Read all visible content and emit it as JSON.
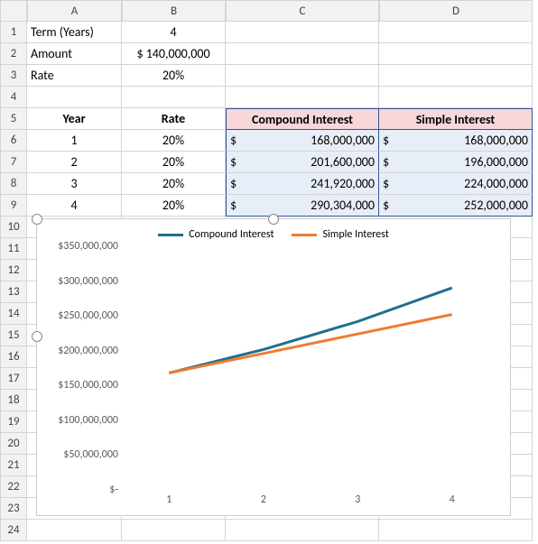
{
  "columns": [
    "A",
    "B",
    "C",
    "D"
  ],
  "param_rows": [
    {
      "label": "Term (Years)",
      "value": "4"
    },
    {
      "label": "Amount",
      "value": "$ 140,000,000"
    },
    {
      "label": "Rate",
      "value": "20%"
    }
  ],
  "table": {
    "headers": {
      "year": "Year",
      "rate": "Rate",
      "ci": "Compound Interest",
      "si": "Simple Interest"
    },
    "rows": [
      {
        "year": "1",
        "rate": "20%",
        "ci": "168,000,000",
        "si": "168,000,000"
      },
      {
        "year": "2",
        "rate": "20%",
        "ci": "201,600,000",
        "si": "196,000,000"
      },
      {
        "year": "3",
        "rate": "20%",
        "ci": "241,920,000",
        "si": "224,000,000"
      },
      {
        "year": "4",
        "rate": "20%",
        "ci": "290,304,000",
        "si": "252,000,000"
      }
    ],
    "header_bg": "#f8d7da",
    "selection_bg": "#e8eef7",
    "selection_border": "#2f5597"
  },
  "chart": {
    "type": "line",
    "series": [
      {
        "name": "Compound Interest",
        "color": "#1f6f8b",
        "values": [
          168000000,
          201600000,
          241920000,
          290304000
        ]
      },
      {
        "name": "Simple Interest",
        "color": "#ed7d31",
        "values": [
          168000000,
          196000000,
          224000000,
          252000000
        ]
      }
    ],
    "x_categories": [
      "1",
      "2",
      "3",
      "4"
    ],
    "y_ticks": [
      {
        "v": 0,
        "label": "$-"
      },
      {
        "v": 50000000,
        "label": "$50,000,000"
      },
      {
        "v": 100000000,
        "label": "$100,000,000"
      },
      {
        "v": 150000000,
        "label": "$150,000,000"
      },
      {
        "v": 200000000,
        "label": "$200,000,000"
      },
      {
        "v": 250000000,
        "label": "$250,000,000"
      },
      {
        "v": 300000000,
        "label": "$300,000,000"
      },
      {
        "v": 350000000,
        "label": "$350,000,000"
      }
    ],
    "ylim": [
      0,
      350000000
    ],
    "line_width": 3,
    "legend_fontsize": 12,
    "axis_label_color": "#595959",
    "background_color": "#ffffff"
  },
  "row_count": 24
}
